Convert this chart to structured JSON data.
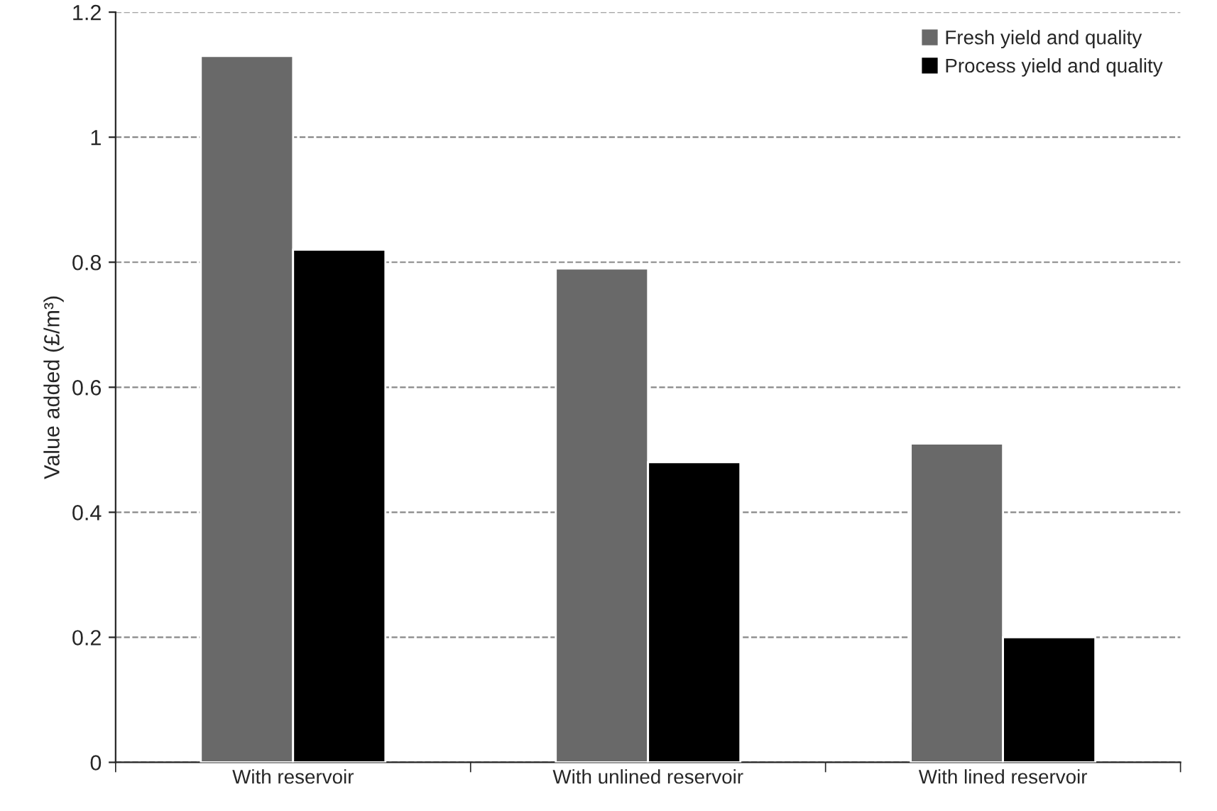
{
  "chart_data": {
    "type": "bar",
    "ylabel": "Value added (£/m³)",
    "categories": [
      "With reservoir",
      "With unlined reservoir",
      "With lined reservoir"
    ],
    "series": [
      {
        "name": "Fresh yield and quality",
        "color": "#696969",
        "values": [
          1.13,
          0.79,
          0.51
        ]
      },
      {
        "name": "Process yield and quality",
        "color": "#000000",
        "values": [
          0.82,
          0.48,
          0.2
        ]
      }
    ],
    "ylim": [
      0,
      1.2
    ],
    "yticks": [
      0,
      0.2,
      0.4,
      0.6,
      0.8,
      1,
      1.2
    ],
    "grid": "y",
    "legend": "top right"
  }
}
